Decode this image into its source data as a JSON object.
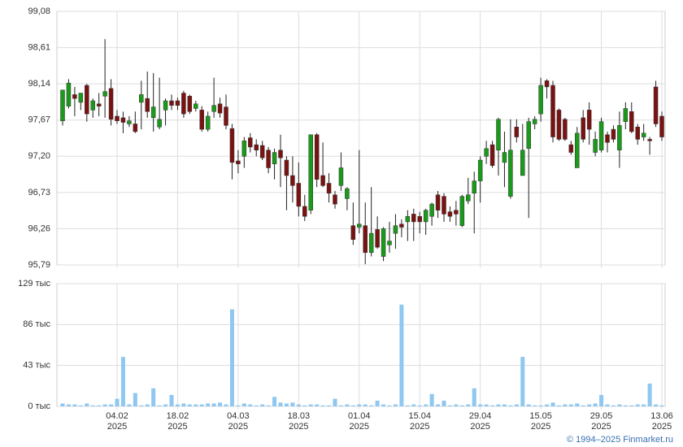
{
  "chart_data": [
    {
      "type": "candlestick",
      "categories": [
        null,
        null,
        null,
        null,
        null,
        null,
        null,
        null,
        null,
        "04.02 2025",
        null,
        null,
        null,
        null,
        null,
        null,
        null,
        null,
        null,
        "18.02 2025",
        null,
        null,
        null,
        null,
        null,
        null,
        null,
        null,
        null,
        "04.03 2025",
        null,
        null,
        null,
        null,
        null,
        null,
        null,
        null,
        null,
        "18.03 2025",
        null,
        null,
        null,
        null,
        null,
        null,
        null,
        null,
        null,
        "01.04 2025",
        null,
        null,
        null,
        null,
        null,
        null,
        null,
        null,
        null,
        "15.04 2025",
        null,
        null,
        null,
        null,
        null,
        null,
        null,
        null,
        null,
        "29.04 2025",
        null,
        null,
        null,
        null,
        null,
        null,
        null,
        null,
        null,
        "15.05 2025",
        null,
        null,
        null,
        null,
        null,
        null,
        null,
        null,
        null,
        "29.05 2025",
        null,
        null,
        null,
        null,
        null,
        null,
        null,
        null,
        null,
        "13.06 2025"
      ],
      "open": [
        97.66,
        97.85,
        98.0,
        97.9,
        98.12,
        97.8,
        97.88,
        97.98,
        98.08,
        97.72,
        97.7,
        97.62,
        97.62,
        97.9,
        97.95,
        97.7,
        97.58,
        97.8,
        97.92,
        97.92,
        98.02,
        97.98,
        97.82,
        97.8,
        97.55,
        97.78,
        97.88,
        97.84,
        97.56,
        97.14,
        97.2,
        97.44,
        97.35,
        97.34,
        97.28,
        97.1,
        97.28,
        97.15,
        96.95,
        96.85,
        96.55,
        96.5,
        97.48,
        96.95,
        96.85,
        96.7,
        96.82,
        96.65,
        96.3,
        96.28,
        96.3,
        95.95,
        96.25,
        95.9,
        96.05,
        96.2,
        96.32,
        96.35,
        96.45,
        96.42,
        96.35,
        96.42,
        96.7,
        96.68,
        96.48,
        96.5,
        96.3,
        96.62,
        96.72,
        96.88,
        97.2,
        97.35,
        97.28,
        97.12,
        96.68,
        97.58,
        96.95,
        97.3,
        97.62,
        97.75,
        98.18,
        98.12,
        97.8,
        97.68,
        97.35,
        97.05,
        97.7,
        97.8,
        97.25,
        97.28,
        97.48,
        97.55,
        97.28,
        97.65,
        97.78,
        97.58,
        97.45,
        97.42,
        98.1,
        97.72
      ],
      "high": [
        98.06,
        98.2,
        98.1,
        98.02,
        98.14,
        97.95,
        98.02,
        98.72,
        98.2,
        97.8,
        97.78,
        97.72,
        97.78,
        98.18,
        98.3,
        98.28,
        98.22,
        97.95,
        98.0,
        97.96,
        98.05,
        98.0,
        97.92,
        97.85,
        97.78,
        98.22,
        97.96,
        98.0,
        97.62,
        97.28,
        97.45,
        97.5,
        97.42,
        97.4,
        97.32,
        97.3,
        97.48,
        97.2,
        97.2,
        97.12,
        96.7,
        97.48,
        97.5,
        97.38,
        96.98,
        96.75,
        97.25,
        96.8,
        96.6,
        97.28,
        96.6,
        96.8,
        96.42,
        96.28,
        96.35,
        96.45,
        96.38,
        96.5,
        96.52,
        96.48,
        96.52,
        96.6,
        96.75,
        96.72,
        96.55,
        96.62,
        96.7,
        96.92,
        97.0,
        97.2,
        97.4,
        97.4,
        97.7,
        97.52,
        97.68,
        97.68,
        97.62,
        97.7,
        97.72,
        98.22,
        98.2,
        98.18,
        97.82,
        97.7,
        97.4,
        97.58,
        97.8,
        97.9,
        97.52,
        97.7,
        97.52,
        97.6,
        97.78,
        97.9,
        97.9,
        97.62,
        97.62,
        97.45,
        98.18,
        97.78
      ],
      "low": [
        97.6,
        97.82,
        97.72,
        97.8,
        97.65,
        97.7,
        97.72,
        97.7,
        97.6,
        97.62,
        97.5,
        97.58,
        97.5,
        97.55,
        97.7,
        97.52,
        97.55,
        97.6,
        97.8,
        97.8,
        97.7,
        97.75,
        97.78,
        97.52,
        97.52,
        97.7,
        97.7,
        97.55,
        96.9,
        96.98,
        97.05,
        97.25,
        97.2,
        97.15,
        96.98,
        96.9,
        96.8,
        96.5,
        96.6,
        96.42,
        96.36,
        96.45,
        96.8,
        96.8,
        96.6,
        96.52,
        96.75,
        96.5,
        96.05,
        96.2,
        95.8,
        95.9,
        96.0,
        95.84,
        95.95,
        96.0,
        96.15,
        96.1,
        96.1,
        96.2,
        96.18,
        96.3,
        96.4,
        96.35,
        96.35,
        96.3,
        96.28,
        96.58,
        96.2,
        96.6,
        97.1,
        97.05,
        96.95,
        96.8,
        96.65,
        97.38,
        96.95,
        96.4,
        97.55,
        97.65,
        97.95,
        97.38,
        97.4,
        97.4,
        97.22,
        97.05,
        97.38,
        97.35,
        97.2,
        97.25,
        97.25,
        97.38,
        97.05,
        97.55,
        97.5,
        97.35,
        97.4,
        97.22,
        97.58,
        97.4
      ],
      "close": [
        98.06,
        98.15,
        97.95,
        98.02,
        97.75,
        97.92,
        97.85,
        98.04,
        97.68,
        97.66,
        97.64,
        97.66,
        97.52,
        98.0,
        97.78,
        97.84,
        97.68,
        97.92,
        97.86,
        97.86,
        97.75,
        97.78,
        97.88,
        97.55,
        97.72,
        97.86,
        97.76,
        97.6,
        97.12,
        97.1,
        97.4,
        97.32,
        97.28,
        97.18,
        97.05,
        97.25,
        97.18,
        96.95,
        96.82,
        96.55,
        96.42,
        97.48,
        96.9,
        96.82,
        96.72,
        96.58,
        97.05,
        96.78,
        96.12,
        96.32,
        95.95,
        96.2,
        96.02,
        96.26,
        96.1,
        96.3,
        96.28,
        96.42,
        96.35,
        96.35,
        96.5,
        96.58,
        96.5,
        96.45,
        96.42,
        96.45,
        96.68,
        96.7,
        96.88,
        97.15,
        97.3,
        97.08,
        97.68,
        97.25,
        97.28,
        97.45,
        97.28,
        97.65,
        97.68,
        98.12,
        98.1,
        97.45,
        97.42,
        97.42,
        97.25,
        97.5,
        97.42,
        97.55,
        97.42,
        97.65,
        97.38,
        97.42,
        97.6,
        97.82,
        97.52,
        97.42,
        97.5,
        97.4,
        97.62,
        97.45
      ],
      "up_color": "#1a9a1a",
      "down_color": "#7a1212",
      "grid": true,
      "ylim": [
        95.79,
        99.08
      ],
      "yticks": [
        {
          "value": 95.79,
          "label": "95,79"
        },
        {
          "value": 96.26,
          "label": "96,26"
        },
        {
          "value": 96.73,
          "label": "96,73"
        },
        {
          "value": 97.2,
          "label": "97,20"
        },
        {
          "value": 97.67,
          "label": "97,67"
        },
        {
          "value": 98.14,
          "label": "98,14"
        },
        {
          "value": 98.61,
          "label": "98,61"
        },
        {
          "value": 99.08,
          "label": "99,08"
        }
      ]
    },
    {
      "type": "bar",
      "values": [
        3,
        2,
        2,
        1,
        3,
        1,
        1,
        2,
        2,
        8,
        52,
        2,
        14,
        1,
        2,
        19,
        1,
        2,
        12,
        2,
        3,
        2,
        2,
        2,
        3,
        3,
        4,
        2,
        102,
        1,
        3,
        2,
        1,
        2,
        1,
        10,
        4,
        3,
        4,
        2,
        1,
        2,
        2,
        1,
        1,
        8,
        1,
        2,
        1,
        2,
        2,
        1,
        6,
        2,
        1,
        2,
        107,
        1,
        2,
        1,
        2,
        13,
        2,
        6,
        1,
        2,
        1,
        2,
        19,
        2,
        2,
        1,
        2,
        2,
        1,
        2,
        52,
        2,
        1,
        1,
        2,
        4,
        1,
        2,
        2,
        3,
        1,
        2,
        3,
        12,
        2,
        1,
        2,
        1,
        1,
        2,
        2,
        24,
        2,
        1
      ],
      "color": "#8ec7f0",
      "grid": true,
      "ylim": [
        0,
        129
      ],
      "yticks": [
        {
          "value": 0,
          "label": "0 тыс"
        },
        {
          "value": 43,
          "label": "43 тыс"
        },
        {
          "value": 86,
          "label": "86 тыс"
        },
        {
          "value": 129,
          "label": "129 тыс"
        }
      ]
    }
  ],
  "copyright": "© 1994–2025 Finmarket.ru"
}
